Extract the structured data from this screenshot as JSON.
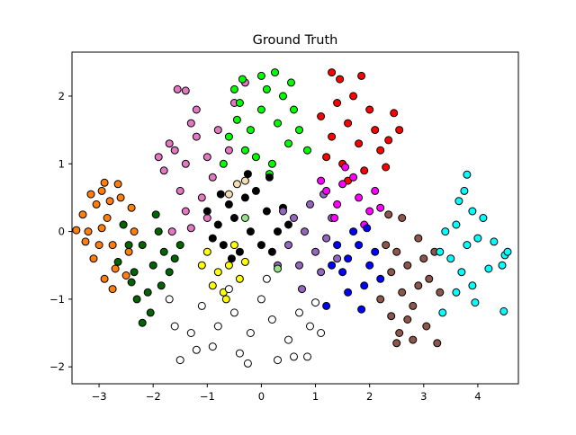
{
  "chart_data": {
    "type": "scatter",
    "title": "Ground Truth",
    "xlabel": "",
    "ylabel": "",
    "xlim": [
      -3.5,
      4.75
    ],
    "ylim": [
      -2.25,
      2.65
    ],
    "xticks": [
      -3,
      -2,
      -1,
      0,
      1,
      2,
      3,
      4
    ],
    "yticks": [
      -2,
      -1,
      0,
      1,
      2
    ],
    "xtick_labels": [
      "−3",
      "−2",
      "−1",
      "0",
      "1",
      "2",
      "3",
      "4"
    ],
    "ytick_labels": [
      "−2",
      "−1",
      "0",
      "1",
      "2"
    ],
    "grid": false,
    "legend": "none",
    "marker_edge_color": "#000000",
    "series": [
      {
        "color": "#ff7f0e",
        "points": [
          [
            -3.05,
            0.4
          ],
          [
            -2.95,
            0.6
          ],
          [
            -2.85,
            0.2
          ],
          [
            -3.2,
            0.0
          ],
          [
            -2.75,
            -0.2
          ],
          [
            -3.1,
            -0.4
          ],
          [
            -2.6,
            0.5
          ],
          [
            -2.9,
            -0.7
          ],
          [
            -2.55,
            0.1
          ],
          [
            -3.3,
            0.25
          ],
          [
            -2.7,
            -0.55
          ],
          [
            -2.45,
            -0.3
          ],
          [
            -2.95,
            0.05
          ],
          [
            -2.65,
            0.7
          ],
          [
            -3.0,
            -0.2
          ],
          [
            -2.4,
            0.35
          ],
          [
            -2.8,
            0.45
          ],
          [
            -3.15,
            0.55
          ],
          [
            -2.5,
            -0.65
          ],
          [
            -3.25,
            -0.15
          ],
          [
            -3.42,
            0.02
          ],
          [
            -2.9,
            0.72
          ],
          [
            -2.35,
            0.0
          ],
          [
            -2.75,
            -0.85
          ]
        ]
      },
      {
        "color": "#006400",
        "points": [
          [
            -2.2,
            -0.2
          ],
          [
            -2.0,
            -0.5
          ],
          [
            -1.8,
            -0.3
          ],
          [
            -2.35,
            -0.6
          ],
          [
            -1.9,
            0.0
          ],
          [
            -2.1,
            -0.9
          ],
          [
            -2.45,
            -0.2
          ],
          [
            -1.7,
            -0.6
          ],
          [
            -2.3,
            -1.0
          ],
          [
            -2.05,
            -1.2
          ],
          [
            -1.6,
            -0.4
          ],
          [
            -2.55,
            0.1
          ],
          [
            -1.85,
            -0.8
          ],
          [
            -2.65,
            -0.45
          ],
          [
            -1.95,
            0.25
          ],
          [
            -2.2,
            -1.35
          ],
          [
            -1.5,
            -0.2
          ],
          [
            -2.4,
            -0.75
          ]
        ]
      },
      {
        "color": "#e377c2",
        "points": [
          [
            -1.6,
            1.2
          ],
          [
            -1.4,
            1.0
          ],
          [
            -1.2,
            1.4
          ],
          [
            -1.8,
            0.9
          ],
          [
            -1.0,
            1.1
          ],
          [
            -1.5,
            0.6
          ],
          [
            -1.3,
            1.6
          ],
          [
            -1.7,
            1.3
          ],
          [
            -0.9,
            0.8
          ],
          [
            -1.1,
            0.5
          ],
          [
            -1.9,
            1.1
          ],
          [
            -1.4,
            0.3
          ],
          [
            -0.8,
            1.5
          ],
          [
            -1.55,
            2.1
          ],
          [
            -1.4,
            2.08
          ],
          [
            -1.2,
            1.8
          ],
          [
            -0.6,
            1.2
          ],
          [
            -1.0,
            0.2
          ],
          [
            -0.5,
            1.9
          ],
          [
            -1.65,
            0.0
          ],
          [
            -0.3,
            2.2
          ],
          [
            -1.3,
            0.05
          ]
        ]
      },
      {
        "color": "#00ff00",
        "points": [
          [
            0.0,
            1.8
          ],
          [
            -0.2,
            1.5
          ],
          [
            0.3,
            1.6
          ],
          [
            -0.4,
            1.9
          ],
          [
            0.1,
            2.1
          ],
          [
            0.5,
            1.3
          ],
          [
            -0.3,
            1.2
          ],
          [
            0.2,
            1.0
          ],
          [
            0.6,
            1.8
          ],
          [
            -0.6,
            1.4
          ],
          [
            0.4,
            2.0
          ],
          [
            -0.1,
            1.1
          ],
          [
            0.7,
            1.5
          ],
          [
            -0.45,
            1.65
          ],
          [
            0.25,
            2.35
          ],
          [
            -0.35,
            2.25
          ],
          [
            0.85,
            1.2
          ],
          [
            -0.7,
            1.0
          ],
          [
            0.15,
            0.85
          ],
          [
            0.55,
            2.2
          ],
          [
            0.0,
            2.3
          ],
          [
            -0.5,
            2.1
          ]
        ]
      },
      {
        "color": "#ff0000",
        "points": [
          [
            1.6,
            1.6
          ],
          [
            1.8,
            1.3
          ],
          [
            1.5,
            1.0
          ],
          [
            2.0,
            1.8
          ],
          [
            1.3,
            1.4
          ],
          [
            1.9,
            0.9
          ],
          [
            1.7,
            2.0
          ],
          [
            1.4,
            1.9
          ],
          [
            2.2,
            1.2
          ],
          [
            1.2,
            1.1
          ],
          [
            2.1,
            1.5
          ],
          [
            1.6,
            0.75
          ],
          [
            1.85,
            2.3
          ],
          [
            1.45,
            2.25
          ],
          [
            2.3,
            0.95
          ],
          [
            1.1,
            1.7
          ],
          [
            2.55,
            1.5
          ],
          [
            2.45,
            1.75
          ],
          [
            1.3,
            2.35
          ],
          [
            2.35,
            1.35
          ]
        ]
      },
      {
        "color": "#000000",
        "points": [
          [
            -0.5,
            0.2
          ],
          [
            -0.2,
            0.0
          ],
          [
            -0.7,
            -0.2
          ],
          [
            0.1,
            0.3
          ],
          [
            -0.4,
            -0.3
          ],
          [
            -0.8,
            0.1
          ],
          [
            0.0,
            -0.2
          ],
          [
            -0.3,
            0.5
          ],
          [
            -0.6,
            0.4
          ],
          [
            0.3,
            0.0
          ],
          [
            -0.9,
            -0.1
          ],
          [
            -0.1,
            0.6
          ],
          [
            0.2,
            -0.3
          ],
          [
            -0.55,
            -0.4
          ],
          [
            0.4,
            0.35
          ],
          [
            -0.75,
            0.55
          ],
          [
            0.15,
            0.8
          ],
          [
            -0.25,
            0.85
          ],
          [
            0.5,
            0.1
          ],
          [
            -1.0,
            0.3
          ]
        ]
      },
      {
        "color": "#9467bd",
        "points": [
          [
            0.8,
            0.0
          ],
          [
            0.6,
            0.2
          ],
          [
            1.0,
            -0.3
          ],
          [
            0.7,
            -0.5
          ],
          [
            0.9,
            0.4
          ],
          [
            1.2,
            -0.1
          ],
          [
            0.5,
            -0.2
          ],
          [
            1.1,
            -0.6
          ],
          [
            0.4,
            0.3
          ],
          [
            1.3,
            0.2
          ],
          [
            0.75,
            -0.85
          ],
          [
            1.15,
            0.55
          ],
          [
            0.3,
            -0.5
          ],
          [
            1.4,
            -0.4
          ]
        ]
      },
      {
        "color": "#ff00ff",
        "points": [
          [
            1.2,
            0.6
          ],
          [
            1.5,
            0.7
          ],
          [
            1.8,
            0.5
          ],
          [
            1.4,
            0.4
          ],
          [
            2.0,
            0.3
          ],
          [
            1.7,
            0.8
          ],
          [
            1.1,
            0.75
          ],
          [
            2.1,
            0.6
          ],
          [
            1.35,
            0.2
          ],
          [
            1.9,
            0.1
          ],
          [
            2.2,
            0.35
          ],
          [
            1.55,
            0.95
          ]
        ]
      },
      {
        "color": "#0000ff",
        "points": [
          [
            1.6,
            -0.4
          ],
          [
            1.8,
            -0.2
          ],
          [
            1.5,
            -0.6
          ],
          [
            2.0,
            -0.5
          ],
          [
            1.4,
            -0.2
          ],
          [
            1.9,
            -0.8
          ],
          [
            1.7,
            0.0
          ],
          [
            1.3,
            -0.5
          ],
          [
            2.1,
            -0.3
          ],
          [
            1.6,
            -0.9
          ],
          [
            1.95,
            0.05
          ],
          [
            1.2,
            -1.1
          ],
          [
            1.85,
            -1.15
          ],
          [
            2.2,
            -0.7
          ]
        ]
      },
      {
        "color": "#8c564b",
        "points": [
          [
            2.7,
            -0.5
          ],
          [
            2.9,
            -0.8
          ],
          [
            2.5,
            -0.3
          ],
          [
            2.8,
            -1.1
          ],
          [
            3.0,
            -0.4
          ],
          [
            2.6,
            -0.9
          ],
          [
            2.4,
            -0.6
          ],
          [
            3.1,
            -0.7
          ],
          [
            2.7,
            -1.3
          ],
          [
            2.3,
            -0.2
          ],
          [
            2.9,
            -0.1
          ],
          [
            2.55,
            -1.5
          ],
          [
            2.8,
            -1.6
          ],
          [
            3.25,
            -1.65
          ],
          [
            2.2,
            -1.0
          ],
          [
            3.2,
            -0.3
          ],
          [
            2.4,
            -1.25
          ],
          [
            3.05,
            -1.4
          ],
          [
            2.6,
            0.2
          ],
          [
            2.35,
            0.25
          ],
          [
            3.3,
            -0.9
          ],
          [
            2.5,
            -1.65
          ]
        ]
      },
      {
        "color": "#00ffff",
        "points": [
          [
            3.6,
            0.1
          ],
          [
            3.8,
            -0.2
          ],
          [
            3.5,
            -0.4
          ],
          [
            3.9,
            0.3
          ],
          [
            3.7,
            -0.6
          ],
          [
            4.0,
            -0.1
          ],
          [
            3.4,
            0.0
          ],
          [
            3.6,
            -0.9
          ],
          [
            4.1,
            0.2
          ],
          [
            3.75,
            0.6
          ],
          [
            3.3,
            -0.3
          ],
          [
            3.8,
            0.84
          ],
          [
            4.2,
            -0.55
          ],
          [
            4.5,
            -0.35
          ],
          [
            4.45,
            -0.5
          ],
          [
            3.95,
            -1.05
          ],
          [
            4.48,
            -1.18
          ],
          [
            3.65,
            0.45
          ],
          [
            4.3,
            -0.15
          ],
          [
            3.35,
            -1.2
          ],
          [
            3.9,
            -0.8
          ],
          [
            4.55,
            -0.3
          ]
        ]
      },
      {
        "color": "#ffff00",
        "points": [
          [
            -1.0,
            -0.3
          ],
          [
            -0.8,
            -0.6
          ],
          [
            -0.6,
            -0.5
          ],
          [
            -0.9,
            -0.8
          ],
          [
            -0.5,
            -0.2
          ],
          [
            -0.7,
            -0.9
          ],
          [
            -1.1,
            -0.5
          ],
          [
            -0.4,
            -0.7
          ],
          [
            -0.3,
            -0.45
          ],
          [
            -0.65,
            -1.0
          ]
        ]
      },
      {
        "color": "#ffffff",
        "points": [
          [
            -0.5,
            -1.2
          ],
          [
            -0.2,
            -1.5
          ],
          [
            0.2,
            -1.3
          ],
          [
            -0.8,
            -1.4
          ],
          [
            0.5,
            -1.6
          ],
          [
            -1.1,
            -1.1
          ],
          [
            0.0,
            -1.0
          ],
          [
            -0.4,
            -1.8
          ],
          [
            0.3,
            -1.9
          ],
          [
            -1.3,
            -1.5
          ],
          [
            0.7,
            -1.2
          ],
          [
            -0.9,
            -1.7
          ],
          [
            0.9,
            -1.4
          ],
          [
            -1.5,
            -1.9
          ],
          [
            0.6,
            -1.85
          ],
          [
            -0.25,
            -1.95
          ],
          [
            1.0,
            -1.05
          ],
          [
            -1.7,
            -1.0
          ],
          [
            0.1,
            -0.7
          ],
          [
            -1.6,
            -1.4
          ],
          [
            1.1,
            -1.5
          ],
          [
            -0.6,
            -0.85
          ],
          [
            0.85,
            -1.85
          ],
          [
            -1.2,
            -1.75
          ]
        ]
      },
      {
        "color": "#f5deb3",
        "points": [
          [
            -0.6,
            0.55
          ],
          [
            -0.45,
            0.7
          ],
          [
            -0.3,
            0.75
          ]
        ]
      },
      {
        "color": "#98df8a",
        "points": [
          [
            -0.3,
            0.2
          ],
          [
            0.3,
            -0.55
          ]
        ]
      }
    ]
  }
}
